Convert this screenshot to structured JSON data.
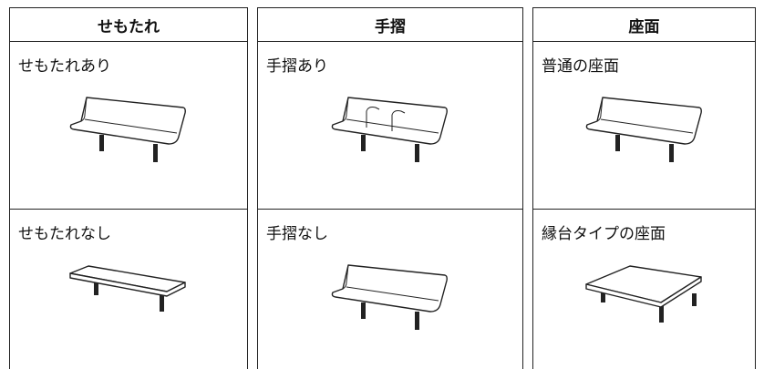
{
  "tables": [
    {
      "header": "せもたれ",
      "rows": [
        "せもたれあり",
        "せもたれなし"
      ]
    },
    {
      "header": "手摺",
      "rows": [
        "手摺あり",
        "手摺なし"
      ]
    },
    {
      "header": "座面",
      "rows": [
        "普通の座面",
        "縁台タイプの座面"
      ]
    }
  ]
}
